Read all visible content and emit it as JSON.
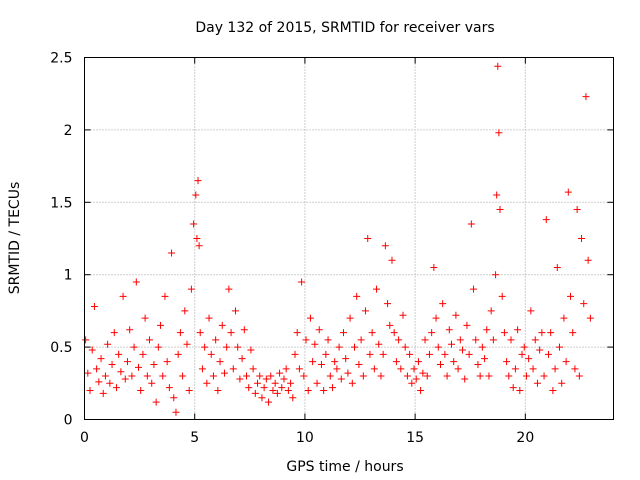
{
  "chart_data": {
    "type": "scatter",
    "title": "Day 132 of 2015, SRMTID for receiver vars",
    "xlabel": "GPS time / hours",
    "ylabel": "SRMTID / TECUs",
    "xlim": [
      0,
      24
    ],
    "ylim": [
      0,
      2.5
    ],
    "xticks": [
      0,
      5,
      10,
      15,
      20
    ],
    "xtick_labels": [
      "0",
      "5",
      "10",
      "15",
      "20"
    ],
    "yticks": [
      0,
      0.5,
      1,
      1.5,
      2,
      2.5
    ],
    "ytick_labels": [
      "0",
      "0.5",
      "1",
      "1.5",
      "2",
      "2.5"
    ],
    "grid": true,
    "marker": "+",
    "series": [
      {
        "name": "SRMTID",
        "color": "#ff0000",
        "x": [
          0.05,
          0.15,
          0.25,
          0.35,
          0.45,
          0.55,
          0.65,
          0.75,
          0.85,
          0.95,
          1.05,
          1.15,
          1.25,
          1.35,
          1.45,
          1.55,
          1.65,
          1.75,
          1.85,
          1.95,
          2.05,
          2.15,
          2.25,
          2.35,
          2.45,
          2.55,
          2.65,
          2.75,
          2.85,
          2.95,
          3.05,
          3.15,
          3.25,
          3.35,
          3.45,
          3.55,
          3.65,
          3.75,
          3.85,
          3.95,
          4.05,
          4.15,
          4.25,
          4.35,
          4.45,
          4.55,
          4.65,
          4.75,
          4.85,
          4.95,
          5.05,
          5.1,
          5.15,
          5.2,
          5.25,
          5.35,
          5.45,
          5.55,
          5.65,
          5.75,
          5.85,
          5.95,
          6.05,
          6.15,
          6.25,
          6.35,
          6.45,
          6.55,
          6.65,
          6.75,
          6.85,
          6.95,
          7.05,
          7.15,
          7.25,
          7.35,
          7.45,
          7.55,
          7.65,
          7.75,
          7.85,
          7.95,
          8.05,
          8.15,
          8.25,
          8.35,
          8.45,
          8.55,
          8.65,
          8.75,
          8.85,
          8.95,
          9.05,
          9.15,
          9.25,
          9.35,
          9.45,
          9.55,
          9.65,
          9.75,
          9.85,
          9.95,
          10.05,
          10.15,
          10.25,
          10.35,
          10.45,
          10.55,
          10.65,
          10.75,
          10.85,
          10.95,
          11.05,
          11.15,
          11.25,
          11.35,
          11.45,
          11.55,
          11.65,
          11.75,
          11.85,
          11.95,
          12.05,
          12.15,
          12.25,
          12.35,
          12.45,
          12.55,
          12.65,
          12.75,
          12.85,
          12.95,
          13.05,
          13.15,
          13.25,
          13.35,
          13.45,
          13.55,
          13.65,
          13.75,
          13.85,
          13.95,
          14.05,
          14.15,
          14.25,
          14.35,
          14.45,
          14.55,
          14.65,
          14.75,
          14.85,
          14.95,
          15.05,
          15.15,
          15.25,
          15.35,
          15.45,
          15.55,
          15.65,
          15.75,
          15.85,
          15.95,
          16.05,
          16.15,
          16.25,
          16.35,
          16.45,
          16.55,
          16.65,
          16.75,
          16.85,
          16.95,
          17.05,
          17.15,
          17.25,
          17.35,
          17.45,
          17.55,
          17.65,
          17.75,
          17.85,
          17.95,
          18.05,
          18.15,
          18.25,
          18.35,
          18.45,
          18.55,
          18.65,
          18.7,
          18.75,
          18.8,
          18.85,
          18.95,
          19.05,
          19.15,
          19.25,
          19.35,
          19.45,
          19.55,
          19.65,
          19.75,
          19.85,
          19.95,
          20.05,
          20.15,
          20.25,
          20.35,
          20.45,
          20.55,
          20.65,
          20.75,
          20.85,
          20.95,
          21.05,
          21.15,
          21.25,
          21.35,
          21.45,
          21.55,
          21.65,
          21.75,
          21.85,
          21.95,
          22.05,
          22.15,
          22.25,
          22.35,
          22.45,
          22.55,
          22.65,
          22.75,
          22.85,
          22.95
        ],
        "y": [
          0.55,
          0.32,
          0.2,
          0.48,
          0.78,
          0.35,
          0.26,
          0.42,
          0.18,
          0.3,
          0.52,
          0.25,
          0.38,
          0.6,
          0.22,
          0.45,
          0.33,
          0.85,
          0.28,
          0.4,
          0.62,
          0.3,
          0.5,
          0.95,
          0.36,
          0.2,
          0.45,
          0.7,
          0.3,
          0.55,
          0.25,
          0.38,
          0.12,
          0.5,
          0.65,
          0.3,
          0.85,
          0.4,
          0.22,
          1.15,
          0.15,
          0.05,
          0.45,
          0.6,
          0.3,
          0.75,
          0.52,
          0.2,
          0.9,
          1.35,
          1.55,
          1.25,
          1.65,
          1.2,
          0.6,
          0.35,
          0.5,
          0.25,
          0.7,
          0.45,
          0.3,
          0.55,
          0.2,
          0.4,
          0.65,
          0.32,
          0.5,
          0.9,
          0.6,
          0.35,
          0.75,
          0.5,
          0.28,
          0.42,
          0.62,
          0.3,
          0.22,
          0.48,
          0.35,
          0.18,
          0.25,
          0.3,
          0.15,
          0.22,
          0.28,
          0.12,
          0.3,
          0.2,
          0.25,
          0.18,
          0.32,
          0.22,
          0.28,
          0.35,
          0.2,
          0.25,
          0.15,
          0.45,
          0.6,
          0.35,
          0.95,
          0.3,
          0.55,
          0.2,
          0.7,
          0.4,
          0.52,
          0.25,
          0.62,
          0.38,
          0.2,
          0.45,
          0.55,
          0.3,
          0.22,
          0.4,
          0.35,
          0.5,
          0.28,
          0.6,
          0.42,
          0.32,
          0.7,
          0.25,
          0.5,
          0.85,
          0.38,
          0.55,
          0.3,
          0.75,
          1.25,
          0.45,
          0.6,
          0.35,
          0.9,
          0.52,
          0.3,
          0.45,
          1.2,
          0.8,
          0.65,
          1.1,
          0.6,
          0.4,
          0.55,
          0.35,
          0.72,
          0.5,
          0.3,
          0.45,
          0.25,
          0.35,
          0.28,
          0.4,
          0.2,
          0.32,
          0.55,
          0.3,
          0.45,
          0.6,
          1.05,
          0.7,
          0.5,
          0.38,
          0.8,
          0.45,
          0.3,
          0.62,
          0.52,
          0.4,
          0.72,
          0.35,
          0.55,
          0.48,
          0.28,
          0.65,
          0.45,
          1.35,
          0.9,
          0.55,
          0.38,
          0.3,
          0.5,
          0.42,
          0.62,
          0.3,
          0.75,
          0.55,
          1.0,
          1.55,
          2.44,
          1.98,
          1.45,
          0.85,
          0.6,
          0.4,
          0.3,
          0.55,
          0.22,
          0.35,
          0.62,
          0.2,
          0.45,
          0.5,
          0.3,
          0.42,
          0.75,
          0.35,
          0.55,
          0.25,
          0.48,
          0.6,
          0.3,
          1.38,
          0.45,
          0.6,
          0.2,
          0.35,
          1.05,
          0.5,
          0.25,
          0.7,
          0.4,
          1.57,
          0.85,
          0.6,
          0.35,
          1.45,
          0.3,
          1.25,
          0.8,
          2.23,
          1.1,
          0.7
        ]
      }
    ]
  }
}
